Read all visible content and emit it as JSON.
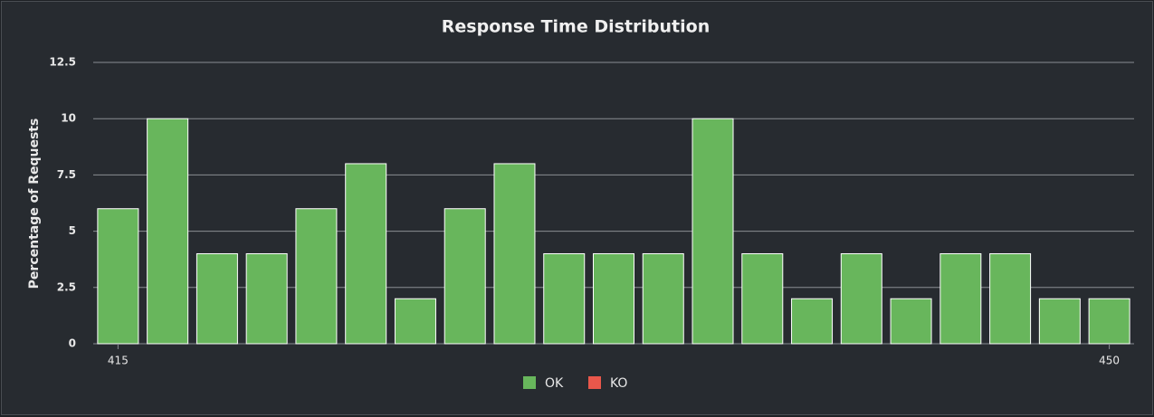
{
  "chart_data": {
    "type": "bar",
    "title": "Response Time Distribution",
    "y_label": "Percentage of Requests",
    "categories": [
      "415",
      null,
      null,
      null,
      null,
      null,
      null,
      null,
      null,
      null,
      null,
      null,
      null,
      null,
      null,
      null,
      null,
      null,
      null,
      null,
      "450"
    ],
    "series": [
      {
        "name": "OK",
        "color": "#68b65c",
        "values": [
          6,
          10,
          4,
          4,
          6,
          8,
          2,
          6,
          8,
          4,
          4,
          4,
          10,
          4,
          2,
          4,
          2,
          4,
          4,
          2,
          2
        ]
      },
      {
        "name": "KO",
        "color": "#e9574b",
        "values": [
          0,
          0,
          0,
          0,
          0,
          0,
          0,
          0,
          0,
          0,
          0,
          0,
          0,
          0,
          0,
          0,
          0,
          0,
          0,
          0,
          0
        ]
      }
    ],
    "ylim": [
      0,
      12.5
    ],
    "yticks": [
      0,
      2.5,
      5,
      7.5,
      10,
      12.5
    ],
    "grid": true
  }
}
